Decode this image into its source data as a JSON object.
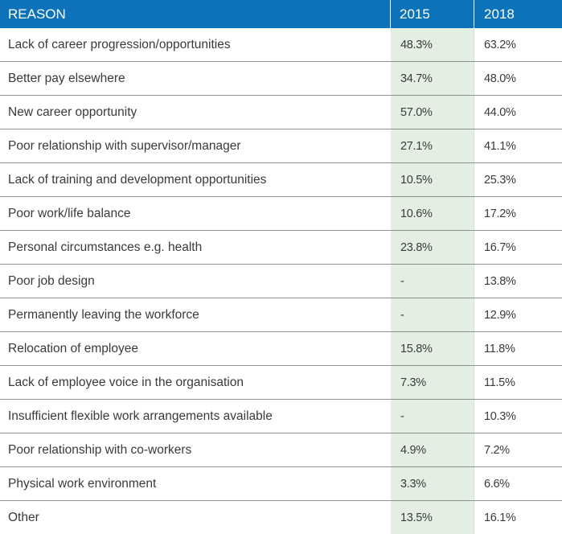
{
  "chart_data": {
    "type": "table",
    "columns": [
      "REASON",
      "2015",
      "2018"
    ],
    "rows": [
      {
        "reason": "Lack of career progression/opportunities",
        "y2015": "48.3%",
        "y2018": "63.2%"
      },
      {
        "reason": "Better pay elsewhere",
        "y2015": "34.7%",
        "y2018": "48.0%"
      },
      {
        "reason": "New career opportunity",
        "y2015": "57.0%",
        "y2018": "44.0%"
      },
      {
        "reason": "Poor relationship with supervisor/manager",
        "y2015": "27.1%",
        "y2018": "41.1%"
      },
      {
        "reason": "Lack of training and development opportunities",
        "y2015": "10.5%",
        "y2018": "25.3%"
      },
      {
        "reason": "Poor work/life balance",
        "y2015": "10.6%",
        "y2018": "17.2%"
      },
      {
        "reason": "Personal circumstances e.g. health",
        "y2015": "23.8%",
        "y2018": "16.7%"
      },
      {
        "reason": "Poor job design",
        "y2015": "-",
        "y2018": "13.8%"
      },
      {
        "reason": "Permanently leaving the workforce",
        "y2015": "-",
        "y2018": "12.9%"
      },
      {
        "reason": "Relocation of employee",
        "y2015": "15.8%",
        "y2018": "11.8%"
      },
      {
        "reason": "Lack of employee voice in the organisation",
        "y2015": "7.3%",
        "y2018": "11.5%"
      },
      {
        "reason": "Insufficient flexible work arrangements available",
        "y2015": "-",
        "y2018": "10.3%"
      },
      {
        "reason": "Poor relationship with co-workers",
        "y2015": "4.9%",
        "y2018": "7.2%"
      },
      {
        "reason": "Physical work environment",
        "y2015": "3.3%",
        "y2018": "6.6%"
      },
      {
        "reason": "Other",
        "y2015": "13.5%",
        "y2018": "16.1%"
      }
    ]
  },
  "colors": {
    "header_bg": "#0c72b9",
    "header_text": "#ffffff",
    "col_2015_bg": "#e3efe2",
    "text": "#3a3a3a",
    "row_border": "#8f8f8f"
  }
}
